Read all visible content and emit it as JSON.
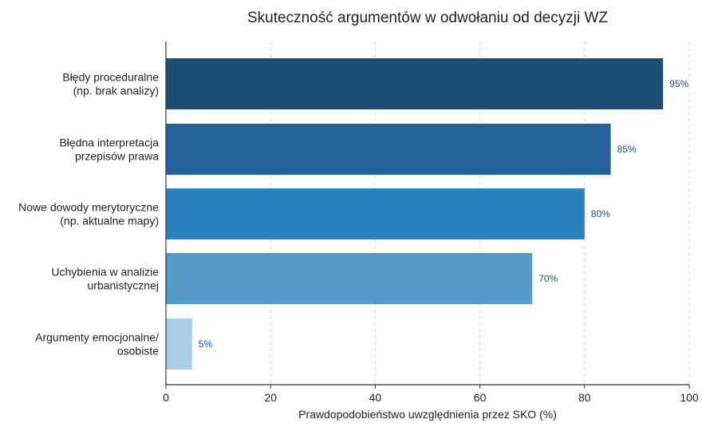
{
  "chart_data": {
    "type": "bar",
    "orientation": "horizontal",
    "title": "Skuteczność argumentów w odwołaniu od decyzji WZ",
    "xlabel": "Prawdopodobieństwo uwzględnienia przez SKO (%)",
    "ylabel": "",
    "xlim": [
      0,
      100
    ],
    "xticks": [
      0,
      20,
      40,
      60,
      80,
      100
    ],
    "grid": "vertical-dashed",
    "categories": [
      [
        "Błędy proceduralne",
        "(np. brak analizy)"
      ],
      [
        "Błędna interpretacja",
        "przepisów prawa"
      ],
      [
        "Nowe dowody merytoryczne",
        "(np. aktualne mapy)"
      ],
      [
        "Uchybienia w analizie",
        "urbanistycznej"
      ],
      [
        "Argumenty emocjonalne/",
        "osobiste"
      ]
    ],
    "values": [
      95,
      85,
      80,
      70,
      5
    ],
    "value_labels": [
      "95%",
      "85%",
      "80%",
      "70%",
      "5%"
    ],
    "colors": [
      "#1c4e74",
      "#22639b",
      "#2b82be",
      "#5499c7",
      "#a9cde6"
    ],
    "value_label_color": "#1f4e79"
  }
}
